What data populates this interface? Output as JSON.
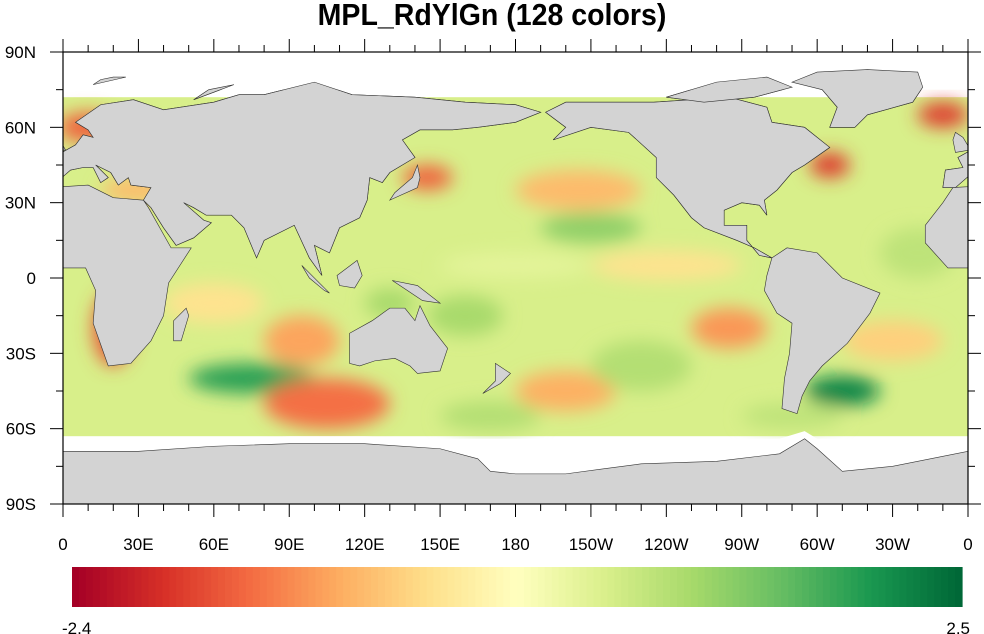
{
  "title": "MPL_RdYlGn (128 colors)",
  "map": {
    "projection": "cylindrical equidistant",
    "center_lon": 180,
    "lat_labels": [
      "90N",
      "60N",
      "30N",
      "0",
      "30S",
      "60S",
      "90S"
    ],
    "lat_values": [
      90,
      60,
      30,
      0,
      -30,
      -60,
      -90
    ],
    "lon_labels": [
      "0",
      "30E",
      "60E",
      "90E",
      "120E",
      "150E",
      "180",
      "150W",
      "120W",
      "90W",
      "60W",
      "30W",
      "0"
    ],
    "lon_values": [
      0,
      30,
      60,
      90,
      120,
      150,
      180,
      210,
      240,
      270,
      300,
      330,
      360
    ],
    "land_color": "#d3d3d3",
    "missing_color": "#ffffff"
  },
  "colorbar": {
    "palette": "MPL_RdYlGn",
    "n_colors": 128,
    "min_label": "-2.4",
    "max_label": "2.5",
    "min": -2.4,
    "max": 2.5,
    "stops": [
      "#a50026",
      "#d73027",
      "#f46d43",
      "#fdae61",
      "#fee08b",
      "#ffffbf",
      "#d9ef8b",
      "#a6d96a",
      "#66bd63",
      "#1a9850",
      "#006837"
    ]
  }
}
